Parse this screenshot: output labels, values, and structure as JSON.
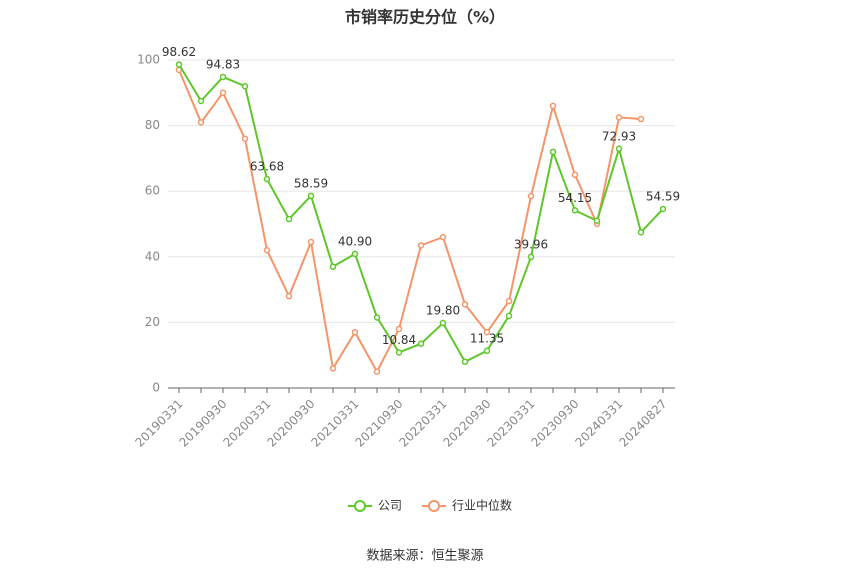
{
  "chart_data": {
    "type": "line",
    "title": "市销率历史分位（%）",
    "categories": [
      "20190331",
      null,
      "20190930",
      null,
      "20200331",
      null,
      "20200930",
      null,
      "20210331",
      null,
      "20210930",
      null,
      "20220331",
      null,
      "20220930",
      null,
      "20230331",
      null,
      "20230930",
      null,
      "20240331",
      null,
      "20240827"
    ],
    "series": [
      {
        "name": "公司",
        "color": "#5ec72a",
        "values": [
          98.62,
          87.5,
          94.83,
          92,
          63.68,
          51.5,
          58.59,
          37,
          40.9,
          21.5,
          10.84,
          13.5,
          19.8,
          8,
          11.35,
          22,
          39.96,
          72,
          54.15,
          51,
          72.93,
          47.5,
          54.59
        ],
        "value_labels": [
          "98.62",
          null,
          "94.83",
          null,
          "63.68",
          null,
          "58.59",
          null,
          "40.90",
          null,
          "10.84",
          null,
          "19.80",
          null,
          "11.35",
          null,
          "39.96",
          null,
          "54.15",
          null,
          "72.93",
          null,
          "54.59"
        ]
      },
      {
        "name": "行业中位数",
        "color": "#f4956a",
        "values": [
          97,
          81,
          90,
          76,
          42,
          28,
          44.5,
          6,
          17,
          5,
          18,
          43.5,
          46,
          25.5,
          17,
          26.5,
          58.5,
          86,
          65,
          50,
          82.5,
          82,
          null
        ]
      }
    ],
    "ylim": [
      0,
      100
    ],
    "yticks": [
      0,
      20,
      40,
      60,
      80,
      100
    ],
    "grid": true,
    "source": "数据来源：恒生聚源"
  }
}
